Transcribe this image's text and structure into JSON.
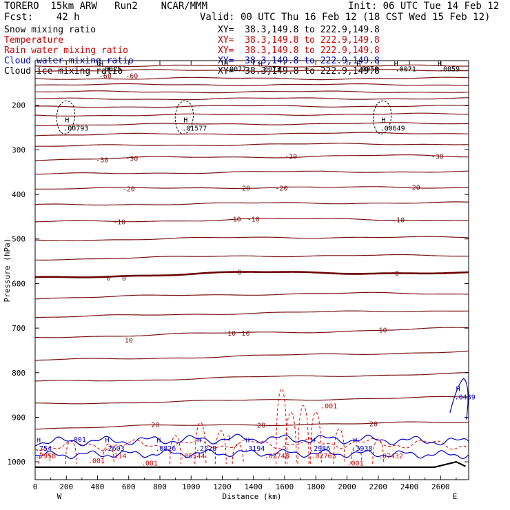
{
  "header": {
    "model": "TORERO  15km ARW   Run2    NCAR/MMM",
    "init": "Init: 06 UTC Tue 14 Feb 12",
    "forecast": "Fcst:    42 h",
    "valid": "Valid: 00 UTC Thu 16 Feb 12 (18 CST Wed 15 Feb 12)"
  },
  "legend": [
    {
      "field": "Snow mixing ratio",
      "xy": "XY=  38.3,149.8 to 222.9,149.8",
      "color": "#000000"
    },
    {
      "field": "Temperature",
      "xy": "XY=  38.3,149.8 to 222.9,149.8",
      "color": "#cc0000"
    },
    {
      "field": "Rain water mixing ratio",
      "xy": "XY=  38.3,149.8 to 222.9,149.8",
      "color": "#cc0000"
    },
    {
      "field": "Cloud water mixing ratio",
      "xy": "XY=  38.3,149.8 to 222.9,149.8",
      "color": "#0000cc"
    },
    {
      "field": "Cloud ice mixing ratio",
      "xy": "XY=  38.3,149.8 to 222.9,149.8",
      "color": "#000000"
    }
  ],
  "colors": {
    "temperature": "#7a1010",
    "temperature_zero": "#6a0000",
    "rain": "#dd0000",
    "cloud_water": "#0000cc",
    "snow": "#000000",
    "terrain": "#000000"
  },
  "chart_data": {
    "type": "cross-section contour",
    "xlabel": "Distance (km)",
    "ylabel": "Pressure (hPa)",
    "xlim": [
      0,
      2780
    ],
    "ylim": [
      1040,
      100
    ],
    "x_ticks": [
      0,
      200,
      400,
      600,
      800,
      1000,
      1200,
      1400,
      1600,
      1800,
      2000,
      2200,
      2400,
      2600
    ],
    "y_ticks": [
      200,
      300,
      400,
      500,
      600,
      700,
      800,
      900,
      1000
    ],
    "west_label": "W",
    "east_label": "E",
    "temperature_isotherms": [
      {
        "label": "-60",
        "p": [
          140,
          140,
          140,
          140,
          140
        ],
        "label_positions": [
          [
            450,
            133
          ],
          [
            620,
            133
          ]
        ]
      },
      {
        "label": "-30",
        "p": [
          322,
          318,
          316,
          313,
          315
        ],
        "label_positions": [
          [
            430,
            322
          ],
          [
            620,
            319
          ],
          [
            1640,
            314
          ],
          [
            2580,
            314
          ]
        ]
      },
      {
        "label": "-20",
        "p": [
          388,
          386,
          384,
          385,
          384
        ],
        "label_positions": [
          [
            600,
            387
          ],
          [
            1340,
            385
          ],
          [
            1580,
            385
          ],
          [
            2430,
            384
          ]
        ]
      },
      {
        "label": "-10",
        "p": [
          462,
          460,
          455,
          456,
          458
        ],
        "label_positions": [
          [
            540,
            461
          ],
          [
            1280,
            455
          ],
          [
            1400,
            455
          ],
          [
            2330,
            456
          ]
        ]
      },
      {
        "label": "0",
        "p": [
          588,
          581,
          575,
          576,
          577
        ],
        "label_positions": [
          [
            470,
            587
          ],
          [
            570,
            587
          ],
          [
            1310,
            574
          ],
          [
            2320,
            576
          ]
        ]
      },
      {
        "label": "10",
        "p": [
          720,
          716,
          710,
          706,
          700
        ],
        "label_positions": [
          [
            1260,
            711
          ],
          [
            1350,
            711
          ],
          [
            2230,
            704
          ],
          [
            600,
            726
          ]
        ]
      },
      {
        "label": "20",
        "p": [
          925,
          920,
          916,
          915,
          910
        ],
        "label_positions": [
          [
            770,
            916
          ],
          [
            1450,
            917
          ],
          [
            2170,
            914
          ]
        ]
      }
    ],
    "cloud_ice_maxima": [
      {
        "x": 200,
        "value": ".00793"
      },
      {
        "x": 960,
        "value": ".01577"
      },
      {
        "x": 2230,
        "value": ".00649"
      }
    ],
    "cloud_top_values": [
      {
        "x": 420,
        "value": ".0025"
      },
      {
        "x": 1220,
        "value": ".0077"
      },
      {
        "x": 1440,
        "value": ".0073"
      },
      {
        "x": 2070,
        "value": ".0058"
      },
      {
        "x": 2310,
        "value": ".0071"
      },
      {
        "x": 2590,
        "value": ".0059"
      }
    ],
    "cloud_water_maxima": [
      {
        "x": 440,
        "value": ".2603"
      },
      {
        "x": 770,
        "value": ".0826"
      },
      {
        "x": 1030,
        "value": ".2228"
      },
      {
        "x": 1340,
        "value": ".3194"
      },
      {
        "x": 1760,
        "value": ".2986"
      },
      {
        "x": 2030,
        "value": ".3938"
      },
      {
        "x": 2690,
        "value": ".0489"
      },
      {
        "x": 0,
        "value": ".754"
      }
    ],
    "cloud_water_labels": [
      ".001",
      "1"
    ],
    "rain_maxima": [
      {
        "x": 480,
        "value": ".114"
      },
      {
        "x": 930,
        "value": ".05544"
      },
      {
        "x": 1470,
        "value": ".02748"
      },
      {
        "x": 1770,
        "value": ".02763"
      },
      {
        "x": 2200,
        "value": ".07432"
      },
      {
        "x": 0,
        "value": ".2958"
      },
      {
        "x": 1830,
        "value": ".001"
      }
    ],
    "rain_labels": [
      ".001",
      ".001",
      ".001"
    ],
    "surface_pressure": 1012
  }
}
